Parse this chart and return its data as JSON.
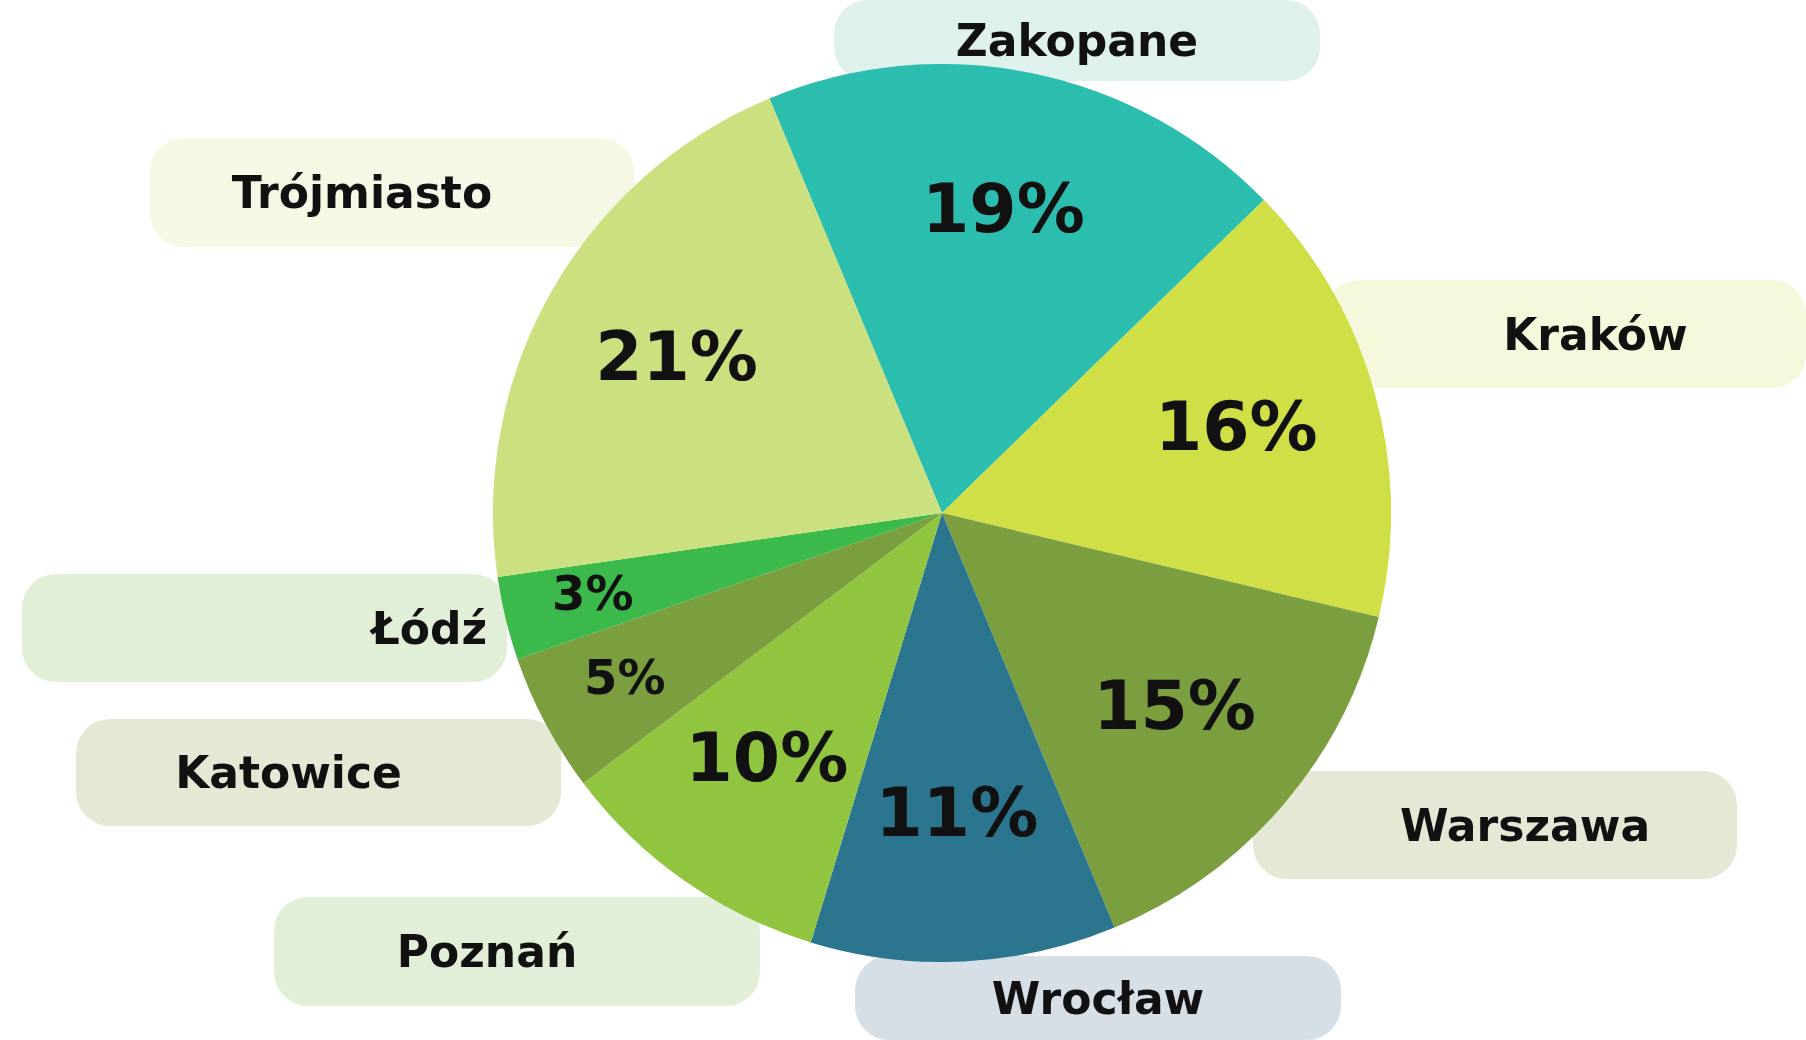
{
  "chart_data": {
    "type": "pie",
    "categories": [
      "Zakopane",
      "Kraków",
      "Warszawa",
      "Wrocław",
      "Poznań",
      "Katowice",
      "Łódź",
      "Trójmiasto"
    ],
    "values": [
      19,
      16,
      15,
      11,
      10,
      5,
      3,
      21
    ],
    "colors": [
      "#2bbdad",
      "#d0df45",
      "#7b9e3e",
      "#2b758e",
      "#92c53f",
      "#7b9e3e",
      "#3bb94a",
      "#cbe07f"
    ],
    "value_labels": [
      "19%",
      "16%",
      "15%",
      "11%",
      "10%",
      "5%",
      "3%",
      "21%"
    ],
    "legend": false
  }
}
